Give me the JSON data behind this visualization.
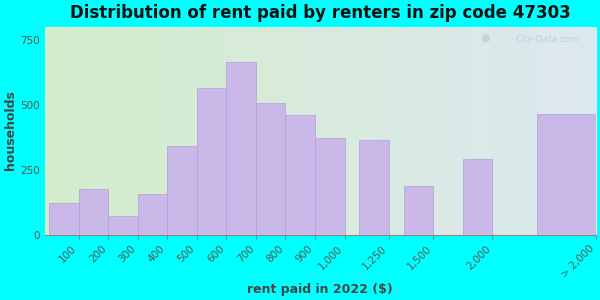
{
  "title": "Distribution of rent paid by renters in zip code 47303",
  "xlabel": "rent paid in 2022 ($)",
  "ylabel": "households",
  "bar_labels": [
    "100",
    "200",
    "300",
    "400",
    "500",
    "600",
    "700",
    "800",
    "900",
    "1,000",
    "1,250",
    "1,500",
    "2,000",
    "> 2,000"
  ],
  "bar_values": [
    120,
    175,
    70,
    155,
    340,
    565,
    665,
    505,
    460,
    370,
    365,
    185,
    290,
    465
  ],
  "bar_color": "#c9b8e8",
  "bar_edge_color": "#b0a0d8",
  "ylim": [
    0,
    800
  ],
  "yticks": [
    0,
    250,
    500,
    750
  ],
  "bg_outer": "#00ffff",
  "bg_inner_left": "#d4edcc",
  "bg_inner_right": "#dde8f0",
  "title_fontsize": 12,
  "axis_label_fontsize": 9,
  "tick_fontsize": 7.5,
  "watermark_text": "City-Data.com",
  "watermark_color": "#b8ccd8"
}
